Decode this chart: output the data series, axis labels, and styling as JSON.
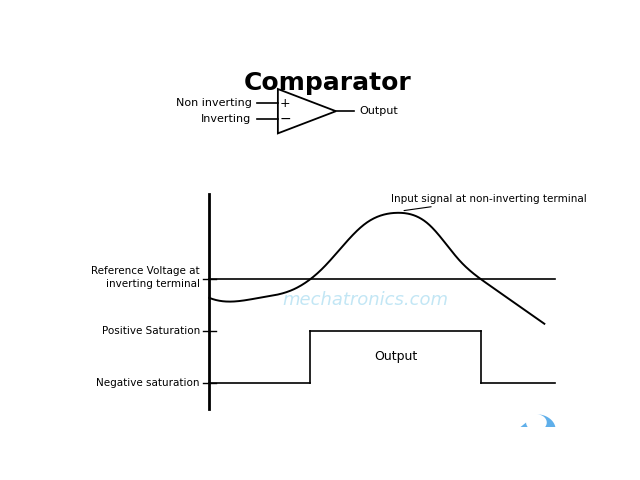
{
  "title": "Comparator",
  "title_fontsize": 18,
  "title_fontweight": "bold",
  "bg_color": "#ffffff",
  "line_color": "#000000",
  "text_color": "#000000",
  "ref_voltage_label": "Reference Voltage at\ninverting terminal",
  "pos_sat_label": "Positive Saturation",
  "neg_sat_label": "Negative saturation",
  "output_label": "Output",
  "input_signal_label": "Input signal at non-inverting terminal",
  "non_inverting_label": "Non inverting",
  "inverting_label": "Inverting",
  "output_sym_label": "Output",
  "ref_y": 0.0,
  "pos_sat_y": -1.4,
  "neg_sat_y": -2.8,
  "yaxis_bottom": -3.5,
  "yaxis_top": 2.3,
  "xlim_left": -2.2,
  "xlim_right": 7.2,
  "ylim_bottom": -4.0,
  "ylim_top": 6.0,
  "ax_x": 0.25,
  "curve_end_x": 6.6,
  "ref_line_end": 6.8,
  "watermark_text": "mechatronics.com",
  "watermark_color": "#87CEEB",
  "watermark_alpha": 0.5,
  "watermark_fontsize": 13
}
